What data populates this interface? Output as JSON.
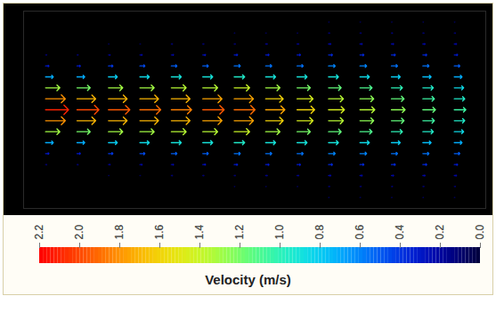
{
  "chart_data": {
    "type": "vector_field",
    "tick_labels": false,
    "x": [
      0,
      1,
      2,
      3,
      4,
      5,
      6,
      7,
      8,
      9,
      10,
      11,
      12,
      13
    ],
    "y": [
      -8,
      -7,
      -6,
      -5,
      -4,
      -3,
      -2,
      -1,
      0,
      1,
      2,
      3,
      4,
      5,
      6,
      7,
      8
    ],
    "xlim": [
      -0.7,
      14
    ],
    "ylim": [
      -9,
      9
    ],
    "values": [
      [
        null,
        null,
        null,
        0.1,
        0.3,
        0.7,
        1.3,
        1.8,
        2.1,
        1.8,
        1.3,
        0.7,
        0.3,
        0.1,
        null,
        null,
        null
      ],
      [
        null,
        null,
        null,
        0.1,
        0.3,
        0.7,
        1.2,
        1.7,
        2.0,
        1.7,
        1.2,
        0.7,
        0.3,
        0.1,
        null,
        null,
        null
      ],
      [
        null,
        null,
        0.05,
        0.15,
        0.4,
        0.8,
        1.3,
        1.7,
        1.95,
        1.7,
        1.3,
        0.8,
        0.4,
        0.15,
        0.05,
        null,
        null
      ],
      [
        null,
        null,
        0.05,
        0.2,
        0.45,
        0.85,
        1.3,
        1.7,
        1.9,
        1.7,
        1.3,
        0.85,
        0.45,
        0.2,
        0.05,
        null,
        null
      ],
      [
        null,
        null,
        0.1,
        0.2,
        0.5,
        0.9,
        1.35,
        1.7,
        1.85,
        1.7,
        1.35,
        0.9,
        0.5,
        0.2,
        0.1,
        null,
        null
      ],
      [
        null,
        null,
        0.1,
        0.25,
        0.5,
        0.9,
        1.35,
        1.75,
        1.95,
        1.75,
        1.35,
        0.9,
        0.5,
        0.25,
        0.1,
        null,
        null
      ],
      [
        null,
        0.05,
        0.1,
        0.3,
        0.55,
        0.95,
        1.4,
        1.75,
        1.9,
        1.75,
        1.4,
        0.95,
        0.55,
        0.3,
        0.1,
        0.05,
        null
      ],
      [
        null,
        0.05,
        0.15,
        0.3,
        0.55,
        0.9,
        1.3,
        1.6,
        1.75,
        1.6,
        1.3,
        0.9,
        0.55,
        0.3,
        0.15,
        0.05,
        null
      ],
      [
        null,
        0.05,
        0.15,
        0.3,
        0.55,
        0.9,
        1.2,
        1.45,
        1.6,
        1.45,
        1.2,
        0.9,
        0.55,
        0.3,
        0.15,
        0.05,
        null
      ],
      [
        0.05,
        0.1,
        0.2,
        0.35,
        0.6,
        0.9,
        1.15,
        1.35,
        1.45,
        1.35,
        1.15,
        0.9,
        0.6,
        0.35,
        0.2,
        0.1,
        0.05
      ],
      [
        0.05,
        0.1,
        0.2,
        0.35,
        0.6,
        0.85,
        1.1,
        1.25,
        1.35,
        1.25,
        1.1,
        0.85,
        0.6,
        0.35,
        0.2,
        0.1,
        0.05
      ],
      [
        0.05,
        0.1,
        0.2,
        0.35,
        0.55,
        0.8,
        1.0,
        1.15,
        1.25,
        1.15,
        1.0,
        0.8,
        0.55,
        0.35,
        0.2,
        0.1,
        0.05
      ],
      [
        0.05,
        0.1,
        0.2,
        0.35,
        0.55,
        0.75,
        0.95,
        1.05,
        1.15,
        1.05,
        0.95,
        0.75,
        0.55,
        0.35,
        0.2,
        0.1,
        0.05
      ],
      [
        0.05,
        0.1,
        0.2,
        0.3,
        0.5,
        0.7,
        0.85,
        0.95,
        1.05,
        0.95,
        0.85,
        0.7,
        0.5,
        0.3,
        0.2,
        0.1,
        0.05
      ]
    ],
    "colorbar": {
      "label": "Velocity (m/s)",
      "range": [
        2.2,
        0
      ],
      "ticks": [
        2.2,
        {
          "value": 2,
          "label": "2.0"
        },
        1.8,
        1.6,
        1.4,
        1.2,
        {
          "value": 1,
          "label": "1.0"
        },
        0.8,
        0.6,
        0.4,
        0.2,
        {
          "value": 0,
          "label": "0.0"
        }
      ]
    }
  }
}
